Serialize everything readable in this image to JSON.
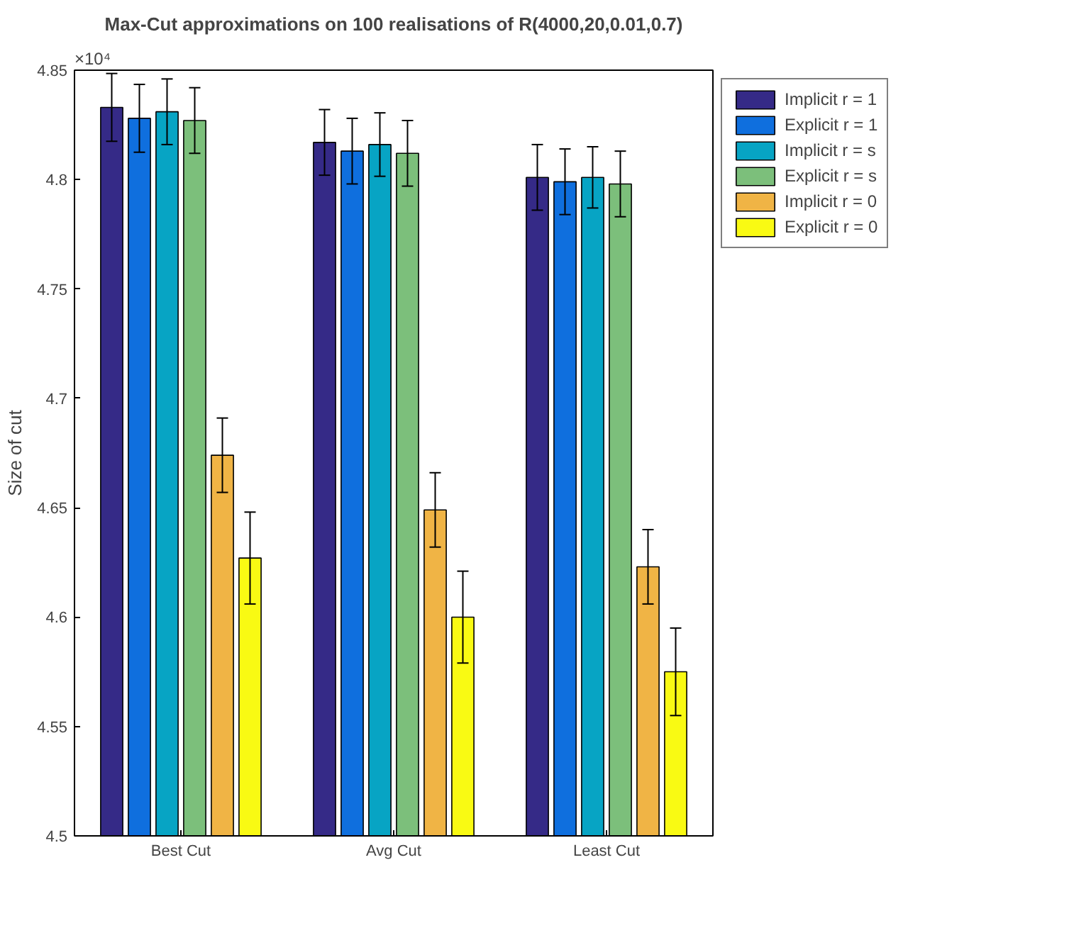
{
  "chart_data": {
    "type": "bar",
    "title": "Max-Cut approximations on 100 realisations of R(4000,20,0.01,0.7)",
    "ylabel": "Size of cut",
    "annotations": [
      "×10⁴"
    ],
    "categories": [
      "Best Cut",
      "Avg Cut",
      "Least Cut"
    ],
    "ylim": [
      4.5,
      4.85
    ],
    "yticks": [
      4.5,
      4.55,
      4.6,
      4.65,
      4.7,
      4.75,
      4.8,
      4.85
    ],
    "grid": false,
    "legend": "right",
    "series": [
      {
        "name": "Implicit r = 1",
        "color": "#352a87",
        "values": [
          4.833,
          4.817,
          4.801
        ],
        "errors": [
          0.0155,
          0.015,
          0.015
        ]
      },
      {
        "name": "Explicit r = 1",
        "color": "#0f6fde",
        "values": [
          4.828,
          4.813,
          4.799
        ],
        "errors": [
          0.0155,
          0.015,
          0.015
        ]
      },
      {
        "name": "Implicit r = s",
        "color": "#07a4c4",
        "values": [
          4.831,
          4.816,
          4.801
        ],
        "errors": [
          0.015,
          0.0145,
          0.014
        ]
      },
      {
        "name": "Explicit r = s",
        "color": "#7cbf7b",
        "values": [
          4.827,
          4.812,
          4.798
        ],
        "errors": [
          0.015,
          0.015,
          0.015
        ]
      },
      {
        "name": "Implicit r = 0",
        "color": "#f0b445",
        "values": [
          4.674,
          4.649,
          4.623
        ],
        "errors": [
          0.017,
          0.017,
          0.017
        ]
      },
      {
        "name": "Explicit r = 0",
        "color": "#f9fa13",
        "values": [
          4.627,
          4.6,
          4.575
        ],
        "errors": [
          0.021,
          0.021,
          0.02
        ]
      }
    ]
  }
}
